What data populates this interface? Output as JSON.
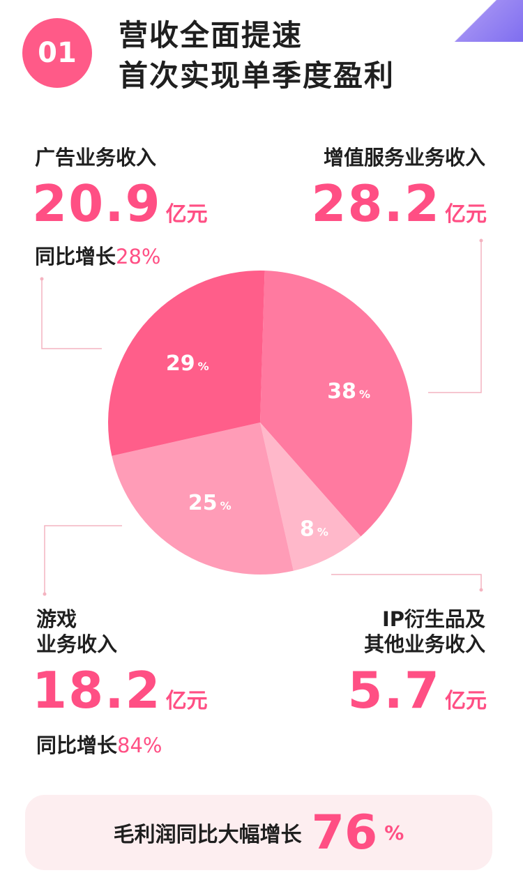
{
  "header": {
    "badge": "01",
    "title_line1": "营收全面提速",
    "title_line2": "首次实现单季度盈利"
  },
  "segments": {
    "ads": {
      "label": "广告业务收入",
      "value": "20.9",
      "unit": "亿元",
      "growth_label": "同比增长",
      "growth": "28%"
    },
    "vas": {
      "label": "增值服务业务收入",
      "value": "28.2",
      "unit": "亿元"
    },
    "games": {
      "label_line1": "游戏",
      "label_line2": "业务收入",
      "value": "18.2",
      "unit": "亿元",
      "growth_label": "同比增长",
      "growth": "84%"
    },
    "ip": {
      "label_line1": "IP衍生品及",
      "label_line2": "其他业务收入",
      "value": "5.7",
      "unit": "亿元"
    }
  },
  "footer": {
    "text": "毛利润同比大幅增长",
    "value": "76",
    "unit": "%"
  },
  "colors": {
    "accent": "#ff4f84",
    "badge": "#ff5a88"
  },
  "chart_data": {
    "type": "pie",
    "slices": [
      {
        "key": "vas",
        "value": 38,
        "label": "38",
        "unit": "%",
        "color": "#ff7aa0"
      },
      {
        "key": "ip",
        "value": 8,
        "label": "8",
        "unit": "%",
        "color": "#ffb8ca"
      },
      {
        "key": "games",
        "value": 25,
        "label": "25",
        "unit": "%",
        "color": "#ff9cb7"
      },
      {
        "key": "ads",
        "value": 29,
        "label": "29",
        "unit": "%",
        "color": "#ff5e8a"
      }
    ]
  }
}
